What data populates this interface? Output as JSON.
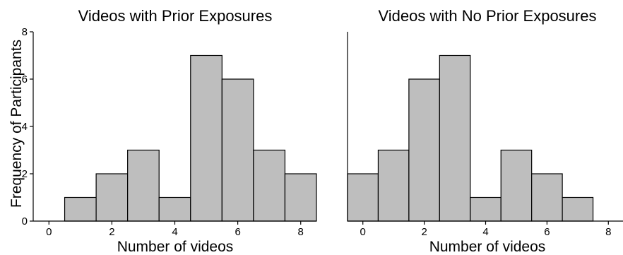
{
  "figure": {
    "ylabel": "Frequency of Participants"
  },
  "chart_data": [
    {
      "type": "bar",
      "title": "Videos with Prior Exposures",
      "xlabel": "Number of videos",
      "ylabel": "Frequency of Participants",
      "x": [
        1,
        2,
        3,
        4,
        5,
        6,
        7,
        8
      ],
      "values": [
        1,
        2,
        3,
        1,
        7,
        6,
        3,
        2
      ],
      "xlim": [
        -0.5,
        8.5
      ],
      "ylim": [
        0,
        8
      ],
      "xticks": [
        0,
        2,
        4,
        6,
        8
      ],
      "yticks": [
        0,
        2,
        4,
        6,
        8
      ],
      "grid": false,
      "bar_color": "#bebebe"
    },
    {
      "type": "bar",
      "title": "Videos with No Prior Exposures",
      "xlabel": "Number of videos",
      "ylabel": "",
      "x": [
        0,
        1,
        2,
        3,
        4,
        5,
        6,
        7
      ],
      "values": [
        2,
        3,
        6,
        7,
        1,
        3,
        2,
        1
      ],
      "xlim": [
        -0.5,
        8.5
      ],
      "ylim": [
        0,
        8
      ],
      "xticks": [
        0,
        2,
        4,
        6,
        8
      ],
      "yticks": [],
      "grid": false,
      "bar_color": "#bebebe"
    }
  ]
}
